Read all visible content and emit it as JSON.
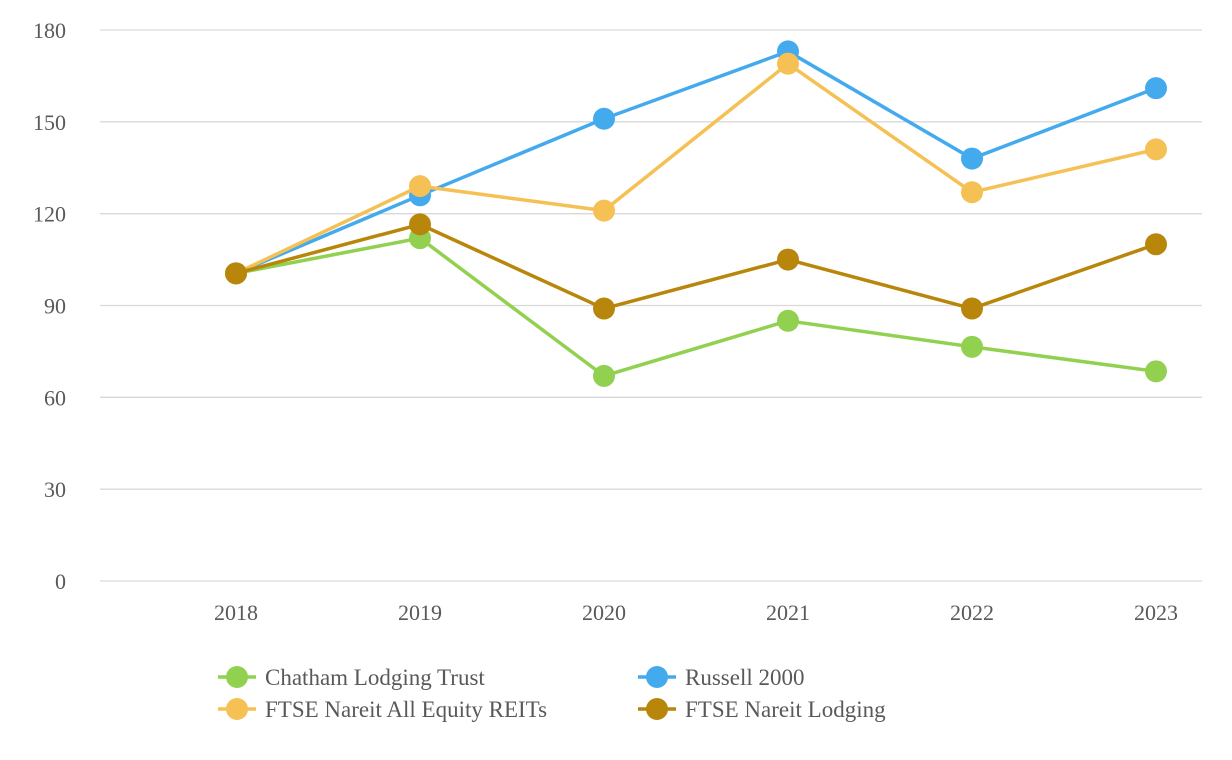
{
  "chart_data": {
    "type": "line",
    "title": "",
    "xlabel": "",
    "ylabel": "",
    "categories": [
      "2018",
      "2019",
      "2020",
      "2021",
      "2022",
      "2023"
    ],
    "ylim": [
      0,
      180
    ],
    "yticks": [
      0,
      30,
      60,
      90,
      120,
      150,
      180
    ],
    "grid": true,
    "legend_position": "bottom",
    "series": [
      {
        "name": "Chatham Lodging Trust",
        "color": "#92d050",
        "values": [
          100.5,
          112,
          67,
          85,
          76.5,
          68.5
        ]
      },
      {
        "name": "Russell 2000",
        "color": "#44aaee",
        "values": [
          100.5,
          126,
          151,
          173,
          138,
          161
        ]
      },
      {
        "name": "FTSE Nareit All Equity REITs",
        "color": "#f5c054",
        "values": [
          100.5,
          129,
          121,
          169,
          127,
          141
        ]
      },
      {
        "name": "FTSE Nareit Lodging",
        "color": "#b8860b",
        "values": [
          100.5,
          116.5,
          89,
          105,
          89,
          110
        ]
      }
    ]
  }
}
